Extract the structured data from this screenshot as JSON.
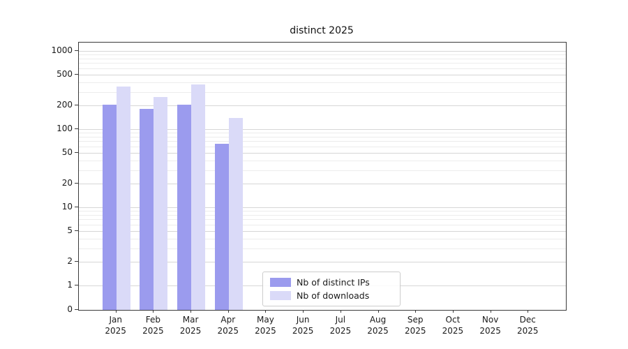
{
  "chart_data": {
    "type": "bar",
    "title": "distinct 2025",
    "categories": [
      "Jan",
      "Feb",
      "Mar",
      "Apr",
      "May",
      "Jun",
      "Jul",
      "Aug",
      "Sep",
      "Oct",
      "Nov",
      "Dec"
    ],
    "category_sublabel": "2025",
    "series": [
      {
        "name": "Nb of distinct IPs",
        "color": "#9b9bee",
        "values": [
          205,
          180,
          205,
          65,
          null,
          null,
          null,
          null,
          null,
          null,
          null,
          null
        ]
      },
      {
        "name": "Nb of downloads",
        "color": "#dadaf8",
        "values": [
          350,
          260,
          375,
          140,
          null,
          null,
          null,
          null,
          null,
          null,
          null,
          null
        ]
      }
    ],
    "yscale": "symlog",
    "yticks": [
      0,
      1,
      2,
      5,
      10,
      20,
      50,
      100,
      200,
      500,
      1000
    ],
    "yticks_minor": [
      3,
      4,
      6,
      7,
      8,
      9,
      30,
      40,
      60,
      70,
      80,
      90,
      300,
      400,
      600,
      700,
      800,
      900
    ],
    "ylim": [
      0,
      1500
    ],
    "grid": "horizontal",
    "legend_position": "lower center inside plot"
  }
}
